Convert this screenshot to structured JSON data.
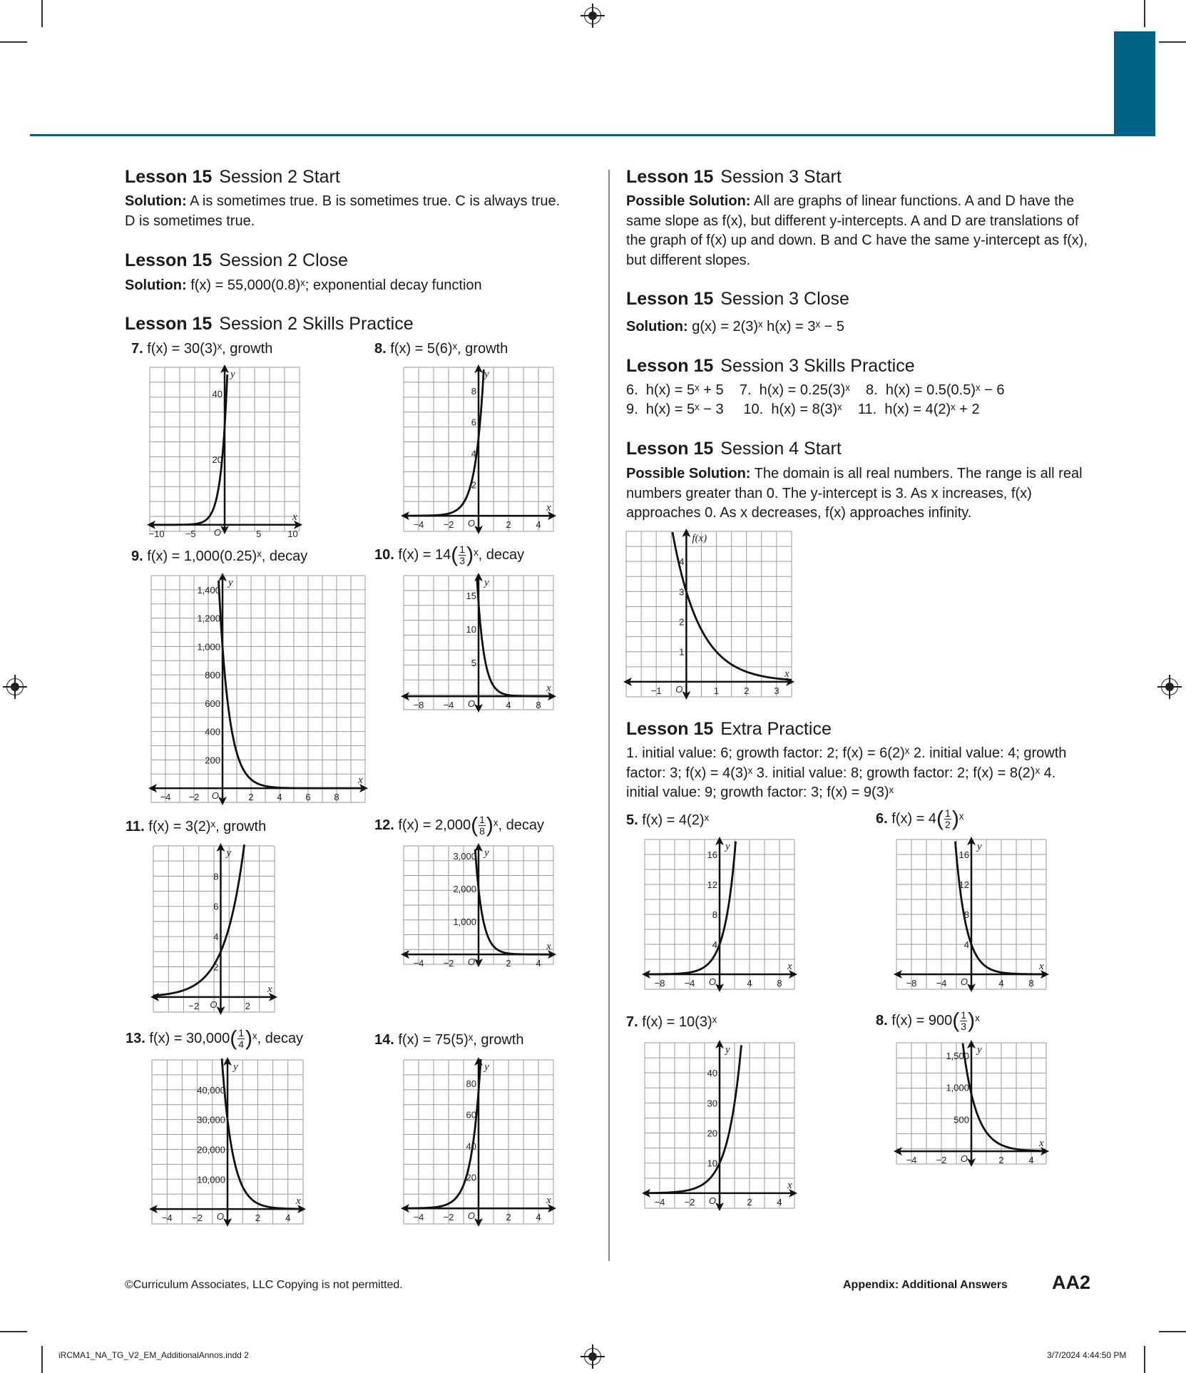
{
  "slug": {
    "file": "iRCMA1_NA_TG_V2_EM_AdditionalAnnos.indd   2",
    "datetime": "3/7/2024   4:44:50 PM"
  },
  "footer": {
    "copyright": "©Curriculum Associates, LLC     Copying is not permitted.",
    "appendix": "Appendix: Additional Answers",
    "page": "AA2"
  },
  "common": {
    "lesson": "Lesson 15",
    "solution": "Solution:",
    "possible_solution": "Possible Solution:",
    "fx": "f(x)"
  },
  "left": {
    "s2start_title": "Session 2 Start",
    "s2start_text": "A is sometimes true. B is sometimes true. C is always true. D is sometimes true.",
    "s2close_title": "Session 2 Close",
    "s2close_text": "f(x) = 55,000(0.8)ˣ; exponential decay function",
    "s2skills_title": "Session 2 Skills Practice",
    "problems": {
      "p7": {
        "num": "7.",
        "text": "f(x) = 30(3)ˣ, growth"
      },
      "p8": {
        "num": "8.",
        "text": "f(x) = 5(6)ˣ, growth"
      },
      "p9": {
        "num": "9.",
        "text": "f(x) = 1,000(0.25)ˣ, decay"
      },
      "p10": {
        "num": "10.",
        "pre": "f(x) = 14",
        "fn": "1",
        "fd": "3",
        "post": "ˣ, decay"
      },
      "p11": {
        "num": "11.",
        "text": "f(x) = 3(2)ˣ, growth"
      },
      "p12": {
        "num": "12.",
        "pre": "f(x) = 2,000",
        "fn": "1",
        "fd": "8",
        "post": "ˣ, decay"
      },
      "p13": {
        "num": "13.",
        "pre": "f(x) = 30,000",
        "fn": "1",
        "fd": "4",
        "post": "ˣ, decay"
      },
      "p14": {
        "num": "14.",
        "text": "f(x) = 75(5)ˣ, growth"
      }
    }
  },
  "right": {
    "s3start_title": "Session 3 Start",
    "s3start_text": "All are graphs of linear functions. A and D have the same slope as f(x), but different y-intercepts. A and D are translations of the graph of f(x) up and down. B and C have the same y-intercept as f(x), but different slopes.",
    "s3close_title": "Session 3 Close",
    "s3close_text": "g(x) = 2(3)ˣ   h(x) = 3ˣ − 5",
    "s3skills_title": "Session 3 Skills Practice",
    "s3skills_line1": "6.  h(x) = 5ˣ + 5    7.  h(x) = 0.25(3)ˣ    8.  h(x) = 0.5(0.5)ˣ − 6",
    "s3skills_line2": "9.  h(x) = 5ˣ − 3     10.  h(x) = 8(3)ˣ    11.  h(x) = 4(2)ˣ + 2",
    "s4start_title": "Session 4 Start",
    "s4start_text": "The domain is all real numbers. The range is all real numbers greater than 0. The y-intercept is 3. As x increases, f(x) approaches 0. As x decreases, f(x) approaches infinity.",
    "extra_title": "Extra Practice",
    "extra_text": "1.  initial value: 6; growth factor: 2; f(x) = 6(2)ˣ    2.  initial value: 4; growth factor: 3; f(x) = 4(3)ˣ    3.  initial value: 8; growth factor: 2; f(x) = 8(2)ˣ    4.  initial value: 9; growth factor: 3; f(x) = 9(3)ˣ",
    "problems": {
      "e5": {
        "num": "5.",
        "text": "f(x) = 4(2)ˣ"
      },
      "e6": {
        "num": "6.",
        "pre": "f(x) = 4",
        "fn": "1",
        "fd": "2",
        "post": "ˣ"
      },
      "e7": {
        "num": "7.",
        "text": "f(x) = 10(3)ˣ"
      },
      "e8": {
        "num": "8.",
        "pre": "f(x) = 900",
        "fn": "1",
        "fd": "3",
        "post": "ˣ"
      }
    }
  },
  "chart_data": [
    {
      "id": "g7",
      "type": "line",
      "function": "30(3)^x",
      "xlim": [
        -11,
        11
      ],
      "ylim": [
        -2,
        48
      ],
      "xticks": [
        "−10",
        "−5",
        "5",
        "10"
      ],
      "xtick_values": [
        -10,
        -5,
        5,
        10
      ],
      "yticks": [
        "20",
        "40"
      ],
      "ytick_values": [
        20,
        40
      ],
      "xlabel": "x",
      "ylabel": "y",
      "origin": "O"
    },
    {
      "id": "g8",
      "type": "line",
      "function": "5(6)^x",
      "xlim": [
        -5,
        5
      ],
      "ylim": [
        -1,
        9.5
      ],
      "xticks": [
        "−4",
        "−2",
        "2",
        "4"
      ],
      "xtick_values": [
        -4,
        -2,
        2,
        4
      ],
      "yticks": [
        "2",
        "4",
        "6",
        "8"
      ],
      "ytick_values": [
        2,
        4,
        6,
        8
      ],
      "xlabel": "x",
      "ylabel": "y",
      "origin": "O"
    },
    {
      "id": "g9",
      "type": "line",
      "function": "1000(0.25)^x",
      "xlim": [
        -5,
        10
      ],
      "ylim": [
        -100,
        1500
      ],
      "xticks": [
        "−4",
        "−2",
        "2",
        "4",
        "6",
        "8"
      ],
      "xtick_values": [
        -4,
        -2,
        2,
        4,
        6,
        8
      ],
      "yticks": [
        "200",
        "400",
        "600",
        "800",
        "1,000",
        "1,200",
        "1,400"
      ],
      "ytick_values": [
        200,
        400,
        600,
        800,
        1000,
        1200,
        1400
      ],
      "xlabel": "x",
      "ylabel": "y",
      "origin": "O"
    },
    {
      "id": "g10",
      "type": "line",
      "function": "14(1/3)^x",
      "xlim": [
        -10,
        10
      ],
      "ylim": [
        -2,
        18
      ],
      "xticks": [
        "−8",
        "−4",
        "4",
        "8"
      ],
      "xtick_values": [
        -8,
        -4,
        4,
        8
      ],
      "yticks": [
        "5",
        "10",
        "15"
      ],
      "ytick_values": [
        5,
        10,
        15
      ],
      "xlabel": "x",
      "ylabel": "y",
      "origin": "O"
    },
    {
      "id": "g11",
      "type": "line",
      "function": "3(2)^x",
      "xlim": [
        -5,
        4
      ],
      "ylim": [
        -1,
        10
      ],
      "xticks": [
        "−2",
        "2"
      ],
      "xtick_values": [
        -2,
        2
      ],
      "yticks": [
        "2",
        "4",
        "6",
        "8"
      ],
      "ytick_values": [
        2,
        4,
        6,
        8
      ],
      "xlabel": "x",
      "ylabel": "y",
      "origin": "O"
    },
    {
      "id": "g12",
      "type": "line",
      "function": "2000(1/8)^x",
      "xlim": [
        -5,
        5
      ],
      "ylim": [
        -300,
        3300
      ],
      "xticks": [
        "−4",
        "−2",
        "2",
        "4"
      ],
      "xtick_values": [
        -4,
        -2,
        2,
        4
      ],
      "yticks": [
        "1,000",
        "2,000",
        "3,000"
      ],
      "ytick_values": [
        1000,
        2000,
        3000
      ],
      "xlabel": "x",
      "ylabel": "y",
      "origin": "O"
    },
    {
      "id": "g13",
      "type": "line",
      "function": "30000(1/4)^x",
      "xlim": [
        -5,
        5
      ],
      "ylim": [
        -5000,
        50000
      ],
      "xticks": [
        "−4",
        "−2",
        "2",
        "4"
      ],
      "xtick_values": [
        -4,
        -2,
        2,
        4
      ],
      "yticks": [
        "10,000",
        "20,000",
        "30,000",
        "40,000"
      ],
      "ytick_values": [
        10000,
        20000,
        30000,
        40000
      ],
      "xlabel": "x",
      "ylabel": "y",
      "origin": "O"
    },
    {
      "id": "g14",
      "type": "line",
      "function": "75(5)^x",
      "xlim": [
        -5,
        5
      ],
      "ylim": [
        -10,
        95
      ],
      "xticks": [
        "−4",
        "−2",
        "2",
        "4"
      ],
      "xtick_values": [
        -4,
        -2,
        2,
        4
      ],
      "yticks": [
        "20",
        "40",
        "60",
        "80"
      ],
      "ytick_values": [
        20,
        40,
        60,
        80
      ],
      "xlabel": "x",
      "ylabel": "y",
      "origin": "O"
    },
    {
      "id": "g15",
      "type": "line",
      "function": "3(1/3)^(x) approx; f(0)=3",
      "xlim": [
        -2,
        3.5
      ],
      "ylim": [
        -0.5,
        5
      ],
      "xticks": [
        "−1",
        "1",
        "2",
        "3"
      ],
      "xtick_values": [
        -1,
        1,
        2,
        3
      ],
      "yticks": [
        "1",
        "2",
        "3",
        "4"
      ],
      "ytick_values": [
        1,
        2,
        3,
        4
      ],
      "xlabel": "x",
      "ylabel": "f(x)",
      "origin": "O"
    },
    {
      "id": "e5g",
      "type": "line",
      "function": "4(2)^x",
      "xlim": [
        -10,
        10
      ],
      "ylim": [
        -2,
        18
      ],
      "xticks": [
        "−8",
        "−4",
        "4",
        "8"
      ],
      "xtick_values": [
        -8,
        -4,
        4,
        8
      ],
      "yticks": [
        "4",
        "8",
        "12",
        "16"
      ],
      "ytick_values": [
        4,
        8,
        12,
        16
      ],
      "xlabel": "x",
      "ylabel": "y",
      "origin": "O"
    },
    {
      "id": "e6g",
      "type": "line",
      "function": "4(1/2)^x",
      "xlim": [
        -10,
        10
      ],
      "ylim": [
        -2,
        18
      ],
      "xticks": [
        "−8",
        "−4",
        "4",
        "8"
      ],
      "xtick_values": [
        -8,
        -4,
        4,
        8
      ],
      "yticks": [
        "4",
        "8",
        "12",
        "16"
      ],
      "ytick_values": [
        4,
        8,
        12,
        16
      ],
      "xlabel": "x",
      "ylabel": "y",
      "origin": "O"
    },
    {
      "id": "e7g",
      "type": "line",
      "function": "10(3)^x",
      "xlim": [
        -5,
        5
      ],
      "ylim": [
        -5,
        50
      ],
      "xticks": [
        "−4",
        "−2",
        "2",
        "4"
      ],
      "xtick_values": [
        -4,
        -2,
        2,
        4
      ],
      "yticks": [
        "10",
        "20",
        "30",
        "40"
      ],
      "ytick_values": [
        10,
        20,
        30,
        40
      ],
      "xlabel": "x",
      "ylabel": "y",
      "origin": "O"
    },
    {
      "id": "e8g",
      "type": "line",
      "function": "900(1/3)^x",
      "xlim": [
        -5,
        5
      ],
      "ylim": [
        -200,
        1700
      ],
      "xticks": [
        "−4",
        "−2",
        "2",
        "4"
      ],
      "xtick_values": [
        -4,
        -2,
        2,
        4
      ],
      "yticks": [
        "500",
        "1,000",
        "1,500"
      ],
      "ytick_values": [
        500,
        1000,
        1500
      ],
      "xlabel": "x",
      "ylabel": "y",
      "origin": "O"
    }
  ]
}
